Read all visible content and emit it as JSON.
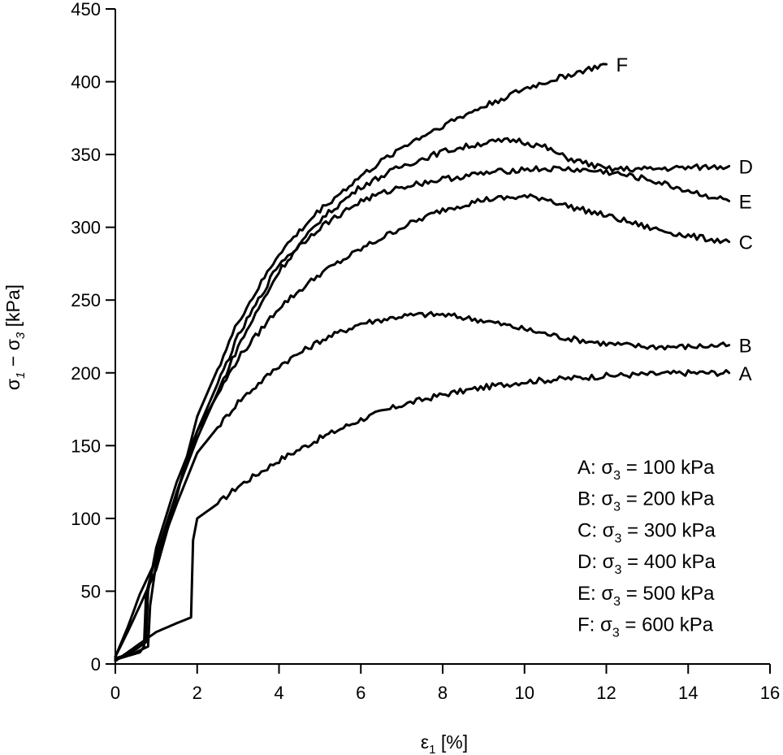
{
  "chart_data": {
    "type": "line",
    "xlabel": {
      "main": "ε",
      "sub": "1",
      "rest": " [%]"
    },
    "ylabel": {
      "s1": "σ",
      "sub1": "1",
      "mid": " − σ",
      "sub2": "3",
      "rest": " [kPa]"
    },
    "xlim": [
      0,
      16
    ],
    "ylim": [
      0,
      450
    ],
    "xticks": [
      0,
      2,
      4,
      6,
      8,
      10,
      12,
      14,
      16
    ],
    "yticks": [
      0,
      50,
      100,
      150,
      200,
      250,
      300,
      350,
      400,
      450
    ],
    "grid": false,
    "legend_position": "bottom-right",
    "series": [
      {
        "name": "A",
        "legend": {
          "pre": "A: σ",
          "sub": "3",
          "post": " = 100 kPa"
        },
        "x": [
          0,
          0.5,
          1.0,
          1.5,
          1.85,
          1.9,
          2.0,
          2.5,
          3.0,
          4.0,
          5.0,
          6.0,
          7.0,
          8.0,
          9.0,
          10.0,
          11.0,
          12.0,
          13.0,
          14.0,
          15.0
        ],
        "y": [
          2,
          12,
          22,
          28,
          32,
          85,
          100,
          110,
          122,
          140,
          155,
          168,
          178,
          185,
          190,
          194,
          196,
          198,
          199,
          200,
          200
        ]
      },
      {
        "name": "B",
        "legend": {
          "pre": "B: σ",
          "sub": "3",
          "post": " = 200 kPa"
        },
        "x": [
          0,
          0.3,
          0.6,
          1.0,
          1.5,
          2.0,
          3.0,
          4.0,
          5.0,
          6.0,
          7.0,
          7.5,
          8.0,
          9.0,
          10.0,
          11.0,
          12.0,
          13.0,
          14.0,
          15.0
        ],
        "y": [
          5,
          25,
          48,
          72,
          110,
          145,
          180,
          205,
          222,
          234,
          239,
          240,
          240,
          236,
          230,
          224,
          220,
          218,
          218,
          219
        ]
      },
      {
        "name": "C",
        "legend": {
          "pre": "C: σ",
          "sub": "3",
          "post": " = 300 kPa"
        },
        "x": [
          0,
          0.5,
          0.75,
          0.8,
          1.0,
          1.5,
          2.0,
          3.0,
          4.0,
          5.0,
          6.0,
          7.0,
          8.0,
          9.0,
          10.0,
          10.5,
          11.0,
          12.0,
          13.0,
          14.0,
          15.0
        ],
        "y": [
          3,
          10,
          15,
          50,
          80,
          125,
          160,
          210,
          245,
          268,
          285,
          300,
          312,
          319,
          321,
          320,
          315,
          308,
          300,
          294,
          290
        ]
      },
      {
        "name": "D",
        "legend": {
          "pre": "D: σ",
          "sub": "3",
          "post": " = 400 kPa"
        },
        "x": [
          0,
          0.6,
          0.7,
          0.75,
          1.0,
          1.5,
          2.0,
          3.0,
          4.0,
          5.0,
          6.0,
          7.0,
          8.0,
          9.0,
          9.8,
          10.5,
          11.0,
          12.0,
          13.0,
          14.0,
          15.0
        ],
        "y": [
          3,
          8,
          12,
          48,
          75,
          118,
          155,
          218,
          270,
          305,
          328,
          342,
          352,
          358,
          360,
          355,
          348,
          340,
          340,
          341,
          342
        ]
      },
      {
        "name": "E",
        "legend": {
          "pre": "E: σ",
          "sub": "3",
          "post": " = 500 kPa"
        },
        "x": [
          0,
          0.5,
          0.8,
          0.85,
          1.0,
          1.5,
          2.0,
          3.0,
          4.0,
          5.0,
          6.0,
          7.0,
          8.0,
          9.0,
          10.0,
          11.0,
          12.0,
          13.0,
          14.0,
          15.0
        ],
        "y": [
          4,
          8,
          12,
          40,
          70,
          118,
          160,
          225,
          275,
          300,
          318,
          328,
          333,
          337,
          340,
          340,
          338,
          333,
          325,
          318
        ]
      },
      {
        "name": "F",
        "legend": {
          "pre": "F: σ",
          "sub": "3",
          "post": " = 600 kPa"
        },
        "x": [
          0,
          0.3,
          0.6,
          1.0,
          1.5,
          2.0,
          3.0,
          4.0,
          5.0,
          6.0,
          7.0,
          8.0,
          9.0,
          10.0,
          11.0,
          12.0
        ],
        "y": [
          5,
          22,
          40,
          65,
          115,
          170,
          235,
          282,
          312,
          335,
          355,
          370,
          383,
          395,
          404,
          412
        ]
      }
    ]
  }
}
